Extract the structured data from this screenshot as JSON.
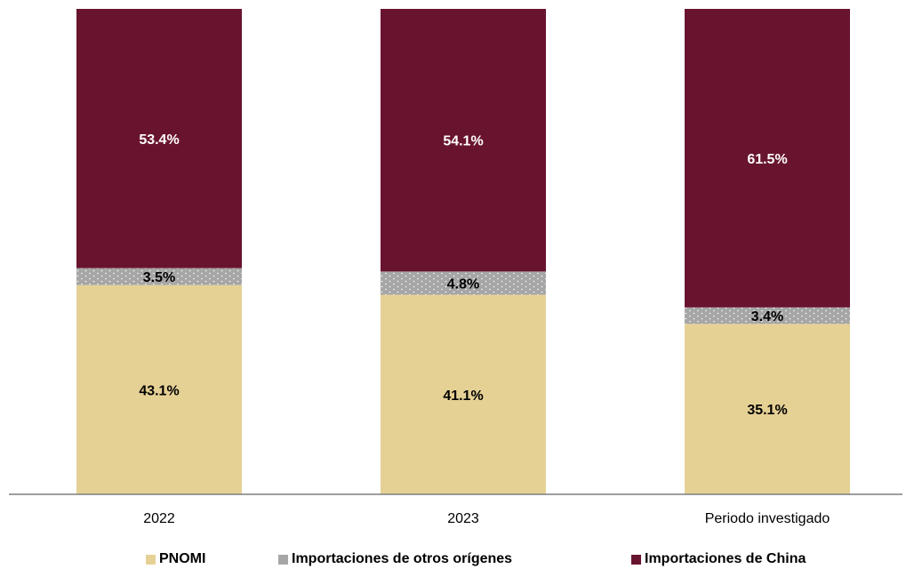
{
  "chart_data": {
    "type": "bar",
    "stacked": true,
    "normalized": true,
    "categories": [
      "2022",
      "2023",
      "Periodo investigado"
    ],
    "series": [
      {
        "name": "PNOMI",
        "values": [
          43.1,
          41.1,
          35.1
        ],
        "labels": [
          "43.1%",
          "41.1%",
          "35.1%"
        ],
        "color": "#e6d195",
        "label_color": "#000000"
      },
      {
        "name": "Importaciones de otros orígenes",
        "values": [
          3.5,
          4.8,
          3.4
        ],
        "labels": [
          "3.5%",
          "4.8%",
          "3.4%"
        ],
        "color": "#a6a6a6",
        "label_color": "#000000",
        "pattern": "dotted"
      },
      {
        "name": "Importaciones de China",
        "values": [
          53.4,
          54.1,
          61.5
        ],
        "labels": [
          "53.4%",
          "54.1%",
          "61.5%"
        ],
        "color": "#69142e",
        "label_color": "#ffffff"
      }
    ],
    "ylim": [
      0,
      100
    ],
    "grid": false,
    "legend_position": "bottom",
    "title": "",
    "xlabel": "",
    "ylabel": ""
  }
}
